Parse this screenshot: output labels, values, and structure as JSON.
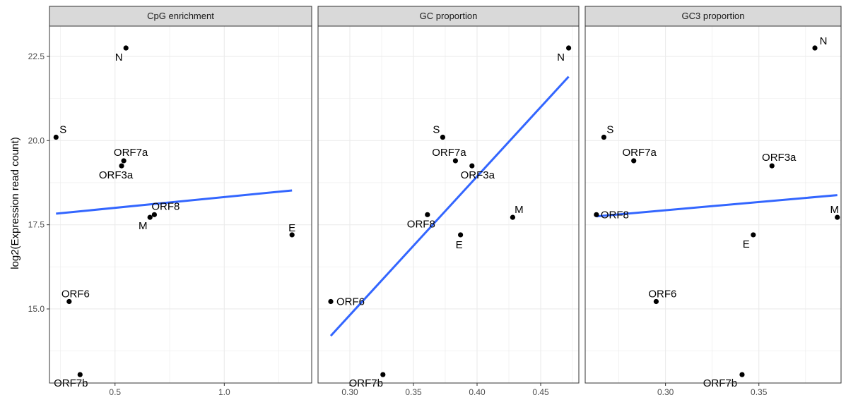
{
  "ylabel": "log2(Expression read count)",
  "colors": {
    "panel_border": "#333333",
    "strip_fill": "#d9d9d9",
    "grid": "#ebebeb",
    "point": "#000000",
    "fit_line": "#3366ff"
  },
  "chart_data": [
    {
      "type": "scatter",
      "title": "CpG enrichment",
      "xlabel": "",
      "ylabel": "log2(Expression read count)",
      "xlim": [
        0.2,
        1.4
      ],
      "ylim": [
        12.8,
        23.4
      ],
      "xticks": [
        0.5,
        1.0
      ],
      "xtick_labels": [
        "0.5",
        "1.0"
      ],
      "yticks": [
        15.0,
        17.5,
        20.0,
        22.5
      ],
      "ytick_labels": [
        "15.0",
        "17.5",
        "20.0",
        "22.5"
      ],
      "grid": true,
      "points": [
        {
          "label": "N",
          "x": 0.55,
          "y": 22.75
        },
        {
          "label": "S",
          "x": 0.23,
          "y": 20.1
        },
        {
          "label": "ORF7a",
          "x": 0.54,
          "y": 19.4
        },
        {
          "label": "ORF3a",
          "x": 0.53,
          "y": 19.25
        },
        {
          "label": "ORF8",
          "x": 0.68,
          "y": 17.8
        },
        {
          "label": "M",
          "x": 0.66,
          "y": 17.72
        },
        {
          "label": "E",
          "x": 1.31,
          "y": 17.2
        },
        {
          "label": "ORF6",
          "x": 0.29,
          "y": 15.22
        },
        {
          "label": "ORF7b",
          "x": 0.34,
          "y": 13.05
        }
      ],
      "fit_line": {
        "x1": 0.23,
        "y1": 17.83,
        "x2": 1.31,
        "y2": 18.52
      }
    },
    {
      "type": "scatter",
      "title": "GC proportion",
      "xlabel": "",
      "ylabel": "log2(Expression read count)",
      "xlim": [
        0.275,
        0.48
      ],
      "ylim": [
        12.8,
        23.4
      ],
      "xticks": [
        0.3,
        0.35,
        0.4,
        0.45
      ],
      "xtick_labels": [
        "0.30",
        "0.35",
        "0.40",
        "0.45"
      ],
      "yticks": [
        15.0,
        17.5,
        20.0,
        22.5
      ],
      "ytick_labels": [
        "15.0",
        "17.5",
        "20.0",
        "22.5"
      ],
      "grid": true,
      "points": [
        {
          "label": "N",
          "x": 0.472,
          "y": 22.75
        },
        {
          "label": "S",
          "x": 0.373,
          "y": 20.1
        },
        {
          "label": "ORF7a",
          "x": 0.383,
          "y": 19.4
        },
        {
          "label": "ORF3a",
          "x": 0.396,
          "y": 19.25
        },
        {
          "label": "M",
          "x": 0.428,
          "y": 17.72
        },
        {
          "label": "ORF8",
          "x": 0.361,
          "y": 17.8
        },
        {
          "label": "E",
          "x": 0.387,
          "y": 17.2
        },
        {
          "label": "ORF6",
          "x": 0.285,
          "y": 15.22
        },
        {
          "label": "ORF7b",
          "x": 0.326,
          "y": 13.05
        }
      ],
      "fit_line": {
        "x1": 0.285,
        "y1": 14.2,
        "x2": 0.472,
        "y2": 21.9
      }
    },
    {
      "type": "scatter",
      "title": "GC3 proportion",
      "xlabel": "",
      "ylabel": "log2(Expression read count)",
      "xlim": [
        0.257,
        0.394
      ],
      "ylim": [
        12.8,
        23.4
      ],
      "xticks": [
        0.3,
        0.35
      ],
      "xtick_labels": [
        "0.30",
        "0.35"
      ],
      "yticks": [
        15.0,
        17.5,
        20.0,
        22.5
      ],
      "ytick_labels": [
        "15.0",
        "17.5",
        "20.0",
        "22.5"
      ],
      "grid": true,
      "points": [
        {
          "label": "N",
          "x": 0.38,
          "y": 22.75
        },
        {
          "label": "S",
          "x": 0.267,
          "y": 20.1
        },
        {
          "label": "ORF7a",
          "x": 0.283,
          "y": 19.4
        },
        {
          "label": "ORF3a",
          "x": 0.357,
          "y": 19.25
        },
        {
          "label": "ORF8",
          "x": 0.263,
          "y": 17.8
        },
        {
          "label": "M",
          "x": 0.392,
          "y": 17.72
        },
        {
          "label": "E",
          "x": 0.347,
          "y": 17.2
        },
        {
          "label": "ORF6",
          "x": 0.295,
          "y": 15.22
        },
        {
          "label": "ORF7b",
          "x": 0.341,
          "y": 13.05
        }
      ],
      "fit_line": {
        "x1": 0.263,
        "y1": 17.75,
        "x2": 0.392,
        "y2": 18.38
      }
    }
  ]
}
